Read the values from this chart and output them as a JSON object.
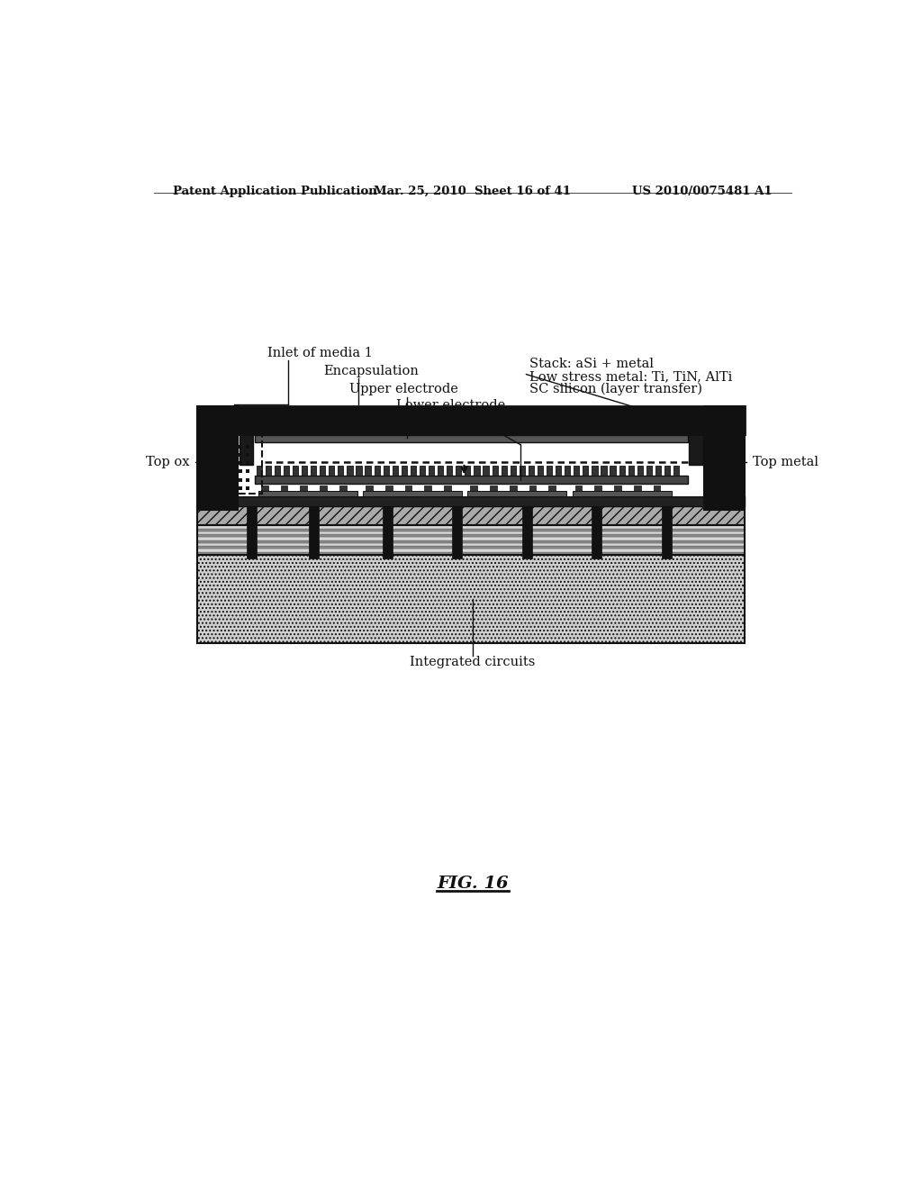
{
  "header_left": "Patent Application Publication",
  "header_mid": "Mar. 25, 2010  Sheet 16 of 41",
  "header_right": "US 2010/0075481 A1",
  "fig_label": "FIG. 16",
  "label_inlet": "Inlet of media 1",
  "label_encapsulation": "Encapsulation",
  "label_upper_electrode": "Upper electrode",
  "label_lower_electrode": "Lower electrode",
  "label_stack": "Stack: aSi + metal",
  "label_low_stress": "Low stress metal: Ti, TiN, AlTi",
  "label_sc_silicon": "SC silicon (layer transfer)",
  "label_top_ox": "Top ox",
  "label_top_metal": "Top metal",
  "label_integrated": "Integrated circuits",
  "bg_color": "#ffffff"
}
